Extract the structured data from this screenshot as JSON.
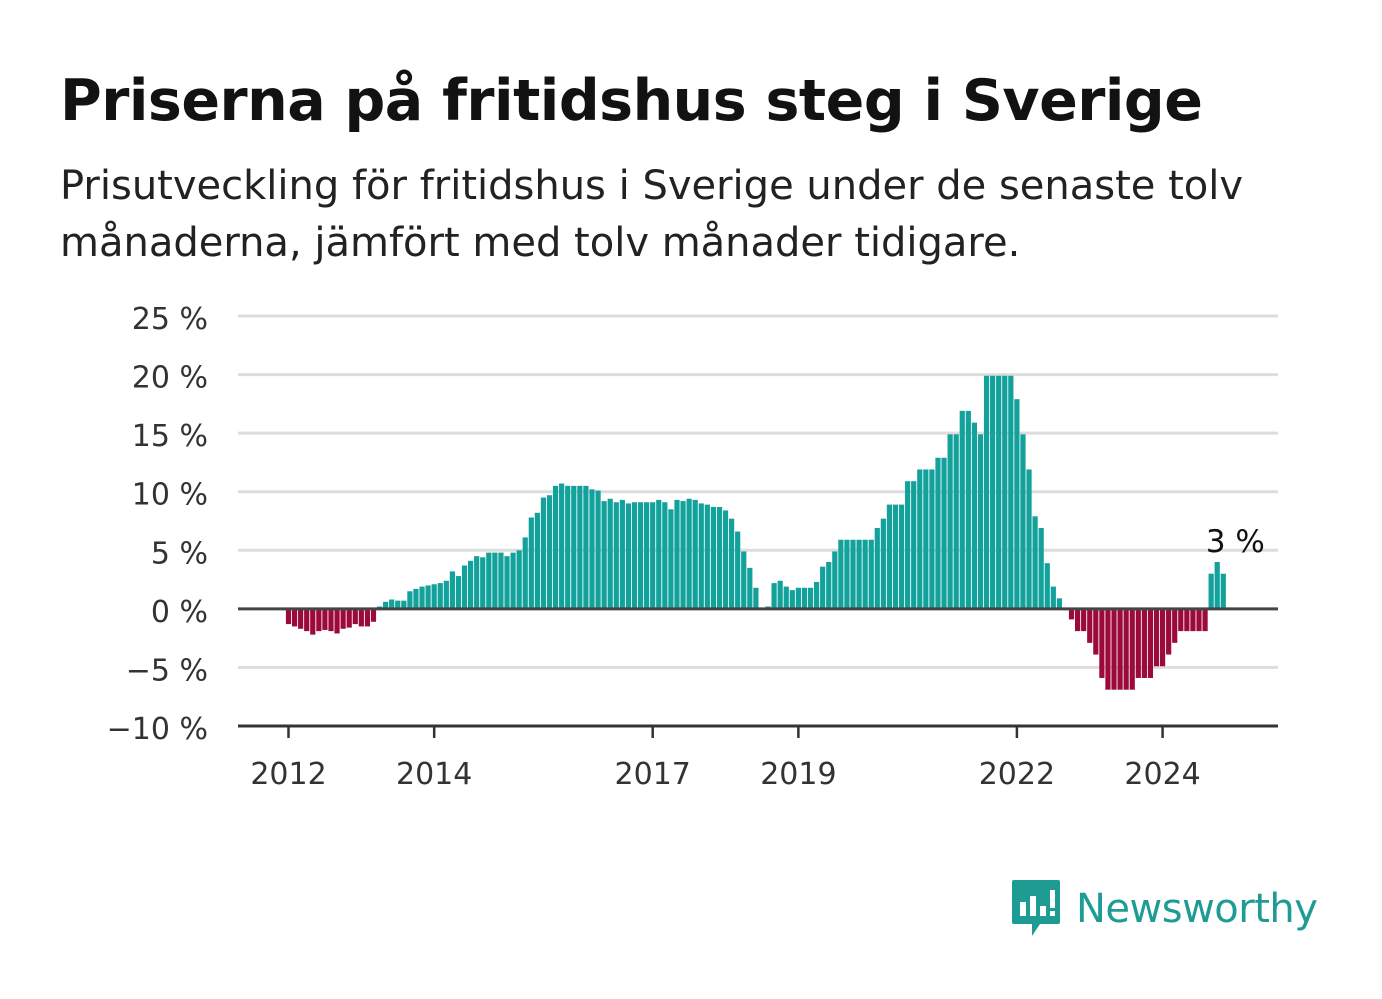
{
  "title": "Priserna på fritidshus steg i Sverige",
  "subtitle": "Prisutveckling för fritidshus i Sverige under de senaste tolv månaderna, jämfört med tolv månader tidigare.",
  "brand": {
    "name": "Newsworthy",
    "icon": "newsworthy-logo-icon"
  },
  "colors": {
    "positive": "#12a29b",
    "negative": "#9c0a3c",
    "grid": "#dddddd",
    "axis": "#333333",
    "brand": "#1e9b93"
  },
  "chart_data": {
    "type": "bar",
    "title": "Priserna på fritidshus steg i Sverige",
    "xlabel": "",
    "ylabel": "",
    "ylim": [
      -10,
      25
    ],
    "y_ticks": [
      25,
      20,
      15,
      10,
      5,
      0,
      -5,
      -10
    ],
    "y_tick_labels": [
      "25 %",
      "20 %",
      "15 %",
      "10 %",
      "5 %",
      "0 %",
      "−5 %",
      "−10 %"
    ],
    "x_ticks": [
      {
        "label": "2012",
        "index": 0
      },
      {
        "label": "2014",
        "index": 24
      },
      {
        "label": "2017",
        "index": 60
      },
      {
        "label": "2019",
        "index": 84
      },
      {
        "label": "2022",
        "index": 120
      },
      {
        "label": "2024",
        "index": 144
      }
    ],
    "first_period": "2012-01",
    "grid": true,
    "annotation": {
      "text": "3 %",
      "index": 155,
      "value": 3
    },
    "values": [
      -1.3,
      -1.5,
      -1.7,
      -1.9,
      -2.2,
      -1.9,
      -1.8,
      -1.9,
      -2.1,
      -1.7,
      -1.6,
      -1.3,
      -1.5,
      -1.5,
      -1.1,
      0.2,
      0.6,
      0.8,
      0.7,
      0.7,
      1.5,
      1.7,
      1.9,
      2.0,
      2.1,
      2.2,
      2.4,
      3.2,
      2.8,
      3.7,
      4.1,
      4.5,
      4.4,
      4.8,
      4.8,
      4.8,
      4.5,
      4.8,
      5.0,
      6.1,
      7.8,
      8.2,
      9.5,
      9.7,
      10.5,
      10.7,
      10.5,
      10.5,
      10.5,
      10.5,
      10.2,
      10.1,
      9.2,
      9.4,
      9.1,
      9.3,
      9.0,
      9.1,
      9.1,
      9.1,
      9.1,
      9.3,
      9.1,
      8.5,
      9.3,
      9.2,
      9.4,
      9.3,
      9.0,
      8.9,
      8.7,
      8.7,
      8.4,
      7.7,
      6.6,
      4.9,
      3.5,
      1.8,
      0.1,
      0.2,
      2.2,
      2.4,
      1.9,
      1.6,
      1.8,
      1.8,
      1.8,
      2.3,
      3.6,
      4.0,
      4.9,
      5.9,
      5.9,
      5.9,
      5.9,
      5.9,
      5.9,
      6.9,
      7.7,
      8.9,
      8.9,
      8.9,
      10.9,
      10.9,
      11.9,
      11.9,
      11.9,
      12.9,
      12.9,
      14.9,
      14.9,
      16.9,
      16.9,
      15.9,
      14.9,
      19.9,
      19.9,
      19.9,
      19.9,
      19.9,
      17.9,
      14.9,
      11.9,
      7.9,
      6.9,
      3.9,
      1.9,
      0.9,
      -0.1,
      -0.9,
      -1.9,
      -1.9,
      -2.9,
      -3.9,
      -5.9,
      -6.9,
      -6.9,
      -6.9,
      -6.9,
      -6.9,
      -5.9,
      -5.9,
      -5.9,
      -4.9,
      -4.9,
      -3.9,
      -2.9,
      -1.9,
      -1.9,
      -1.9,
      -1.9,
      -1.9,
      3.0,
      4.0,
      3.0
    ]
  }
}
